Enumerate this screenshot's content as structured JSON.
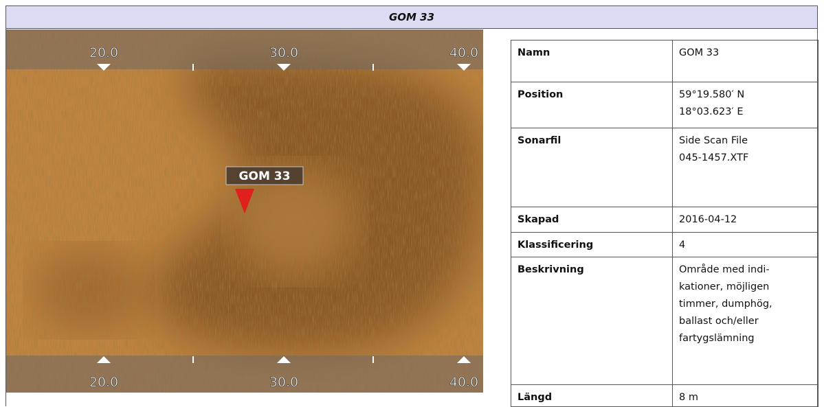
{
  "header": {
    "title": "GOM 33"
  },
  "image": {
    "scale_labels": [
      "20.0",
      "30.0",
      "40.0"
    ],
    "target_label": "GOM 33"
  },
  "table": {
    "rows": [
      {
        "label": "Namn",
        "value": [
          "GOM 33"
        ]
      },
      {
        "label": "Position",
        "value": [
          "59°19.580′ N",
          "18°03.623′ E"
        ]
      },
      {
        "label": "Sonarfil",
        "value": [
          "Side Scan File",
          "045-1457.XTF"
        ]
      },
      {
        "label": "Skapad",
        "value": [
          "2016-04-12"
        ]
      },
      {
        "label": "Klassificering",
        "value": [
          "4"
        ]
      },
      {
        "label": "Beskrivning",
        "value": [
          "Område med indi-",
          "kationer, möjligen",
          "timmer, dumphög,",
          "ballast och/eller",
          "fartygslämning"
        ]
      },
      {
        "label": "Längd",
        "value": [
          "8 m"
        ]
      }
    ]
  }
}
